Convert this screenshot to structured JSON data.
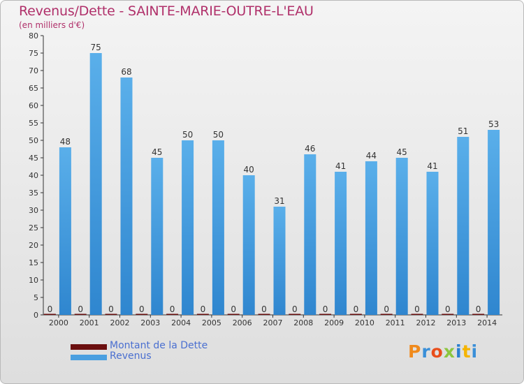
{
  "title": "Revenus/Dette - SAINTE-MARIE-OUTRE-L'EAU",
  "subtitle": "(en milliers d'€)",
  "colors": {
    "title": "#b0306a",
    "revenus": "#4a9fe0",
    "dette": "#6b0f0f",
    "legend_text": "#4a6fd0",
    "background": "#e6e6e6"
  },
  "legend": {
    "dette_label": "Montant de la Dette",
    "revenus_label": "Revenus"
  },
  "logo": {
    "text": "Proxiti",
    "letter_colors": [
      "#f08a1c",
      "#3a8fd8",
      "#e94e1b",
      "#8cc63f",
      "#2a7fd0",
      "#f5b400",
      "#3a8fd8"
    ]
  },
  "chart_data": {
    "type": "bar",
    "title": "Revenus/Dette - SAINTE-MARIE-OUTRE-L'EAU",
    "ylabel": "(en milliers d'€)",
    "xlabel": "",
    "ylim": [
      0,
      80
    ],
    "yticks": [
      0,
      5,
      10,
      15,
      20,
      25,
      30,
      35,
      40,
      45,
      50,
      55,
      60,
      65,
      70,
      75,
      80
    ],
    "grid": false,
    "legend_position": "bottom-left",
    "categories": [
      "2000",
      "2001",
      "2002",
      "2003",
      "2004",
      "2005",
      "2006",
      "2007",
      "2008",
      "2009",
      "2010",
      "2011",
      "2012",
      "2013",
      "2014"
    ],
    "series": [
      {
        "name": "Montant de la Dette",
        "values": [
          0,
          0,
          0,
          0,
          0,
          0,
          0,
          0,
          0,
          0,
          0,
          0,
          0,
          0,
          0
        ]
      },
      {
        "name": "Revenus",
        "values": [
          48,
          75,
          68,
          45,
          50,
          50,
          40,
          31,
          46,
          41,
          44,
          45,
          41,
          51,
          53
        ]
      }
    ]
  }
}
